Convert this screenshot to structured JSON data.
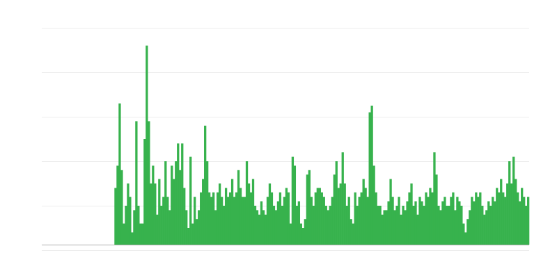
{
  "chart_data": {
    "type": "bar",
    "title": "",
    "xlabel": "",
    "ylabel": "",
    "ylim": [
      0,
      5
    ],
    "grid": true,
    "color": "#37b24d",
    "baseline_color": "#b0b0b0",
    "grid_color": "#ececec",
    "leading_empty_fraction": 0.149,
    "values": [
      1.4,
      1.9,
      3.3,
      1.8,
      0.6,
      1.0,
      1.5,
      1.2,
      0.4,
      0.9,
      2.9,
      1.0,
      0.6,
      0.6,
      2.5,
      4.6,
      2.9,
      1.5,
      1.9,
      1.5,
      0.8,
      1.6,
      1.0,
      1.2,
      2.0,
      1.2,
      0.9,
      1.9,
      1.6,
      2.0,
      2.4,
      1.8,
      2.4,
      1.4,
      0.9,
      0.5,
      2.1,
      0.6,
      1.2,
      0.7,
      0.9,
      1.3,
      1.6,
      2.8,
      2.0,
      1.3,
      1.2,
      1.3,
      0.9,
      1.3,
      1.5,
      1.2,
      1.0,
      1.4,
      1.2,
      1.3,
      1.6,
      1.2,
      1.3,
      1.8,
      1.4,
      1.2,
      1.2,
      2.0,
      1.5,
      1.3,
      1.6,
      1.0,
      0.9,
      0.8,
      1.1,
      0.9,
      0.8,
      1.2,
      1.5,
      1.3,
      1.0,
      0.9,
      1.1,
      1.3,
      1.0,
      1.2,
      1.4,
      1.3,
      0.6,
      2.1,
      1.9,
      1.0,
      1.1,
      0.6,
      0.5,
      0.7,
      1.7,
      1.8,
      1.2,
      1.0,
      1.3,
      1.4,
      1.4,
      1.3,
      1.2,
      1.0,
      0.9,
      1.0,
      1.2,
      1.7,
      2.0,
      1.4,
      1.5,
      2.2,
      1.5,
      1.0,
      1.2,
      0.7,
      0.6,
      1.3,
      1.0,
      1.2,
      1.3,
      1.6,
      1.4,
      1.2,
      3.1,
      3.25,
      1.9,
      1.3,
      1.0,
      1.0,
      0.8,
      0.9,
      0.9,
      1.1,
      1.6,
      1.2,
      0.9,
      1.0,
      1.2,
      0.8,
      1.0,
      0.9,
      1.1,
      1.3,
      1.5,
      1.0,
      1.1,
      0.8,
      1.2,
      1.1,
      1.0,
      1.3,
      1.2,
      1.4,
      1.3,
      2.2,
      1.7,
      1.0,
      0.9,
      1.1,
      1.2,
      1.0,
      1.0,
      1.2,
      1.3,
      0.9,
      1.2,
      1.1,
      1.0,
      0.6,
      0.4,
      0.7,
      0.9,
      1.2,
      1.1,
      1.3,
      1.2,
      1.3,
      1.0,
      0.8,
      0.9,
      1.1,
      1.0,
      1.2,
      1.1,
      1.4,
      1.3,
      1.6,
      1.3,
      1.2,
      1.5,
      2.0,
      1.5,
      2.1,
      1.6,
      1.3,
      1.1,
      1.4,
      1.2,
      1.0,
      1.2
    ]
  }
}
